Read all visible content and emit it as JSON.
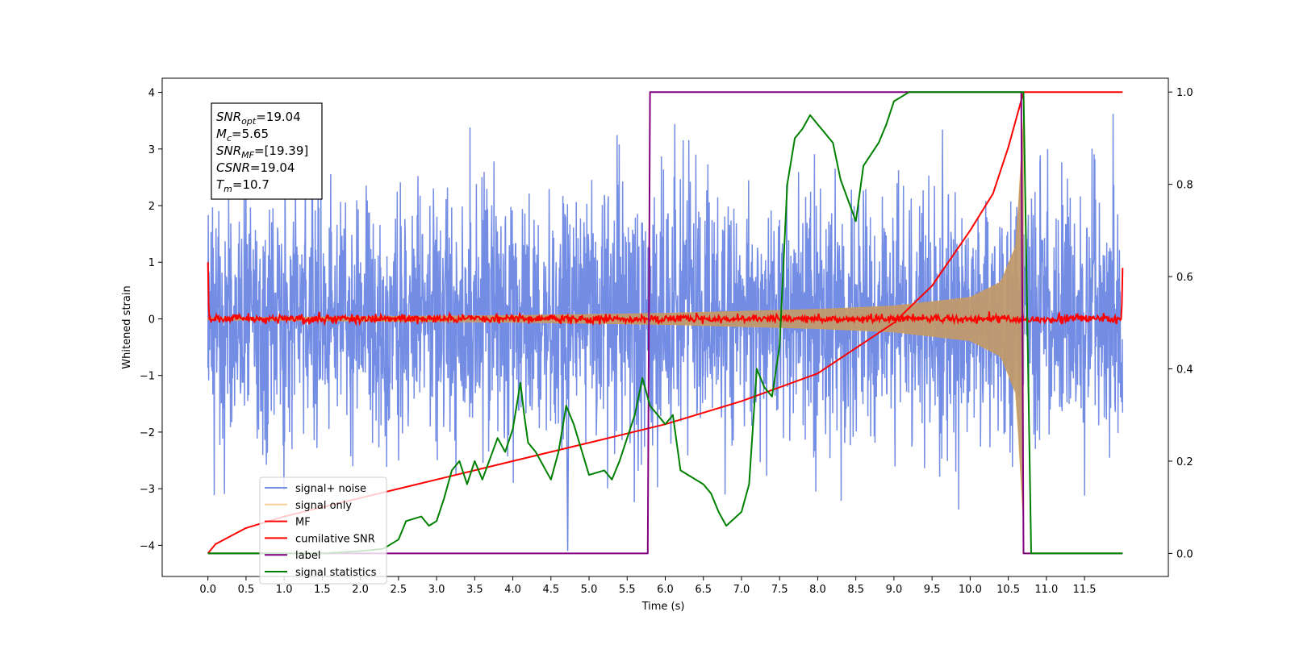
{
  "chart_data": {
    "type": "line",
    "xlabel": "Time (s)",
    "ylabel": "Whitened strain",
    "xlim": [
      -0.6,
      12.6
    ],
    "ylim": [
      -4.55,
      4.25
    ],
    "y2lim": [
      -0.05,
      1.03
    ],
    "xticks": [
      "0.0",
      "0.5",
      "1.0",
      "1.5",
      "2.0",
      "2.5",
      "3.0",
      "3.5",
      "4.0",
      "4.5",
      "5.0",
      "5.5",
      "6.0",
      "6.5",
      "7.0",
      "7.5",
      "8.0",
      "8.5",
      "9.0",
      "9.5",
      "10.0",
      "10.5",
      "11.0",
      "11.5"
    ],
    "yticks": [
      "−4",
      "−3",
      "−2",
      "−1",
      "0",
      "1",
      "2",
      "3",
      "4"
    ],
    "y2ticks": [
      "0.0",
      "0.2",
      "0.4",
      "0.6",
      "0.8",
      "1.0"
    ],
    "colors": {
      "signal_noise": "#6b86e3",
      "signal_only": "#f2a12c",
      "mf": "#ff0000",
      "cumulative_snr": "#ff0000",
      "label": "#800080",
      "signal_statistics": "#008000"
    },
    "legend": {
      "position": "lower-left",
      "entries": [
        "signal+ noise",
        "signal only",
        "MF",
        "cumilative SNR",
        "label",
        "signal statistics"
      ]
    },
    "annotation": {
      "position": "top-left",
      "lines": [
        {
          "symbol": "SNR",
          "sub": "opt",
          "value": "=19.04"
        },
        {
          "symbol": "M",
          "sub": "c",
          "value": "=5.65"
        },
        {
          "symbol": "SNR",
          "sub": "MF",
          "value": "=[19.39]"
        },
        {
          "symbol": "CSNR",
          "sub": "",
          "value": "=19.04"
        },
        {
          "symbol": "T",
          "sub": "m",
          "value": "=10.7"
        }
      ]
    },
    "series": [
      {
        "name": "signal+ noise",
        "axis": "left",
        "x_range": [
          0.0,
          12.0
        ],
        "amplitude_range": [
          -4.1,
          3.9
        ]
      },
      {
        "name": "signal only",
        "axis": "left",
        "merger_time": 10.7,
        "envelope": {
          "x": [
            0.0,
            2.0,
            4.0,
            6.0,
            8.0,
            9.0,
            10.0,
            10.4,
            10.6,
            10.7
          ],
          "y": [
            0.02,
            0.04,
            0.06,
            0.1,
            0.17,
            0.23,
            0.38,
            0.65,
            1.3,
            3.6
          ]
        }
      },
      {
        "name": "MF",
        "axis": "left",
        "x_range": [
          0.0,
          12.0
        ],
        "start_value": 1.0,
        "end_value": 0.9,
        "level": 0.0
      },
      {
        "name": "cumilative SNR",
        "axis": "right",
        "x": [
          0.0,
          0.1,
          0.5,
          1.0,
          2.0,
          3.0,
          4.0,
          5.0,
          6.0,
          7.0,
          8.0,
          9.0,
          9.5,
          10.0,
          10.3,
          10.5,
          10.6,
          10.7,
          12.0
        ],
        "y": [
          0.0,
          0.02,
          0.055,
          0.08,
          0.12,
          0.16,
          0.2,
          0.24,
          0.28,
          0.33,
          0.39,
          0.5,
          0.58,
          0.7,
          0.78,
          0.88,
          0.94,
          1.0,
          1.0
        ]
      },
      {
        "name": "label",
        "axis": "right",
        "x": [
          0.0,
          5.77,
          5.8,
          10.67,
          10.7,
          12.0
        ],
        "y": [
          0.0,
          0.0,
          1.0,
          1.0,
          0.0,
          0.0
        ]
      },
      {
        "name": "signal statistics",
        "axis": "right",
        "x": [
          0.0,
          0.5,
          1.0,
          1.5,
          2.0,
          2.3,
          2.5,
          2.6,
          2.8,
          2.9,
          3.0,
          3.1,
          3.2,
          3.3,
          3.4,
          3.5,
          3.6,
          3.8,
          3.9,
          4.0,
          4.1,
          4.15,
          4.2,
          4.3,
          4.5,
          4.6,
          4.7,
          4.8,
          5.0,
          5.2,
          5.3,
          5.4,
          5.6,
          5.7,
          5.8,
          5.9,
          6.0,
          6.1,
          6.2,
          6.3,
          6.5,
          6.6,
          6.7,
          6.8,
          7.0,
          7.1,
          7.2,
          7.3,
          7.4,
          7.5,
          7.6,
          7.7,
          7.8,
          7.9,
          8.0,
          8.2,
          8.3,
          8.5,
          8.6,
          8.8,
          8.9,
          9.0,
          9.2,
          9.5,
          10.0,
          10.5,
          10.7,
          10.8,
          11.0,
          12.0
        ],
        "y": [
          0.0,
          0.0,
          0.0,
          0.0,
          0.005,
          0.01,
          0.03,
          0.07,
          0.08,
          0.06,
          0.07,
          0.12,
          0.18,
          0.2,
          0.15,
          0.2,
          0.16,
          0.25,
          0.22,
          0.27,
          0.37,
          0.3,
          0.24,
          0.22,
          0.16,
          0.22,
          0.32,
          0.28,
          0.17,
          0.18,
          0.16,
          0.2,
          0.3,
          0.38,
          0.32,
          0.3,
          0.28,
          0.3,
          0.18,
          0.17,
          0.15,
          0.13,
          0.09,
          0.06,
          0.09,
          0.15,
          0.4,
          0.36,
          0.34,
          0.45,
          0.8,
          0.9,
          0.92,
          0.95,
          0.93,
          0.89,
          0.81,
          0.72,
          0.84,
          0.89,
          0.93,
          0.98,
          1.0,
          1.0,
          1.0,
          1.0,
          1.0,
          0.0,
          0.0,
          0.0
        ]
      }
    ]
  }
}
